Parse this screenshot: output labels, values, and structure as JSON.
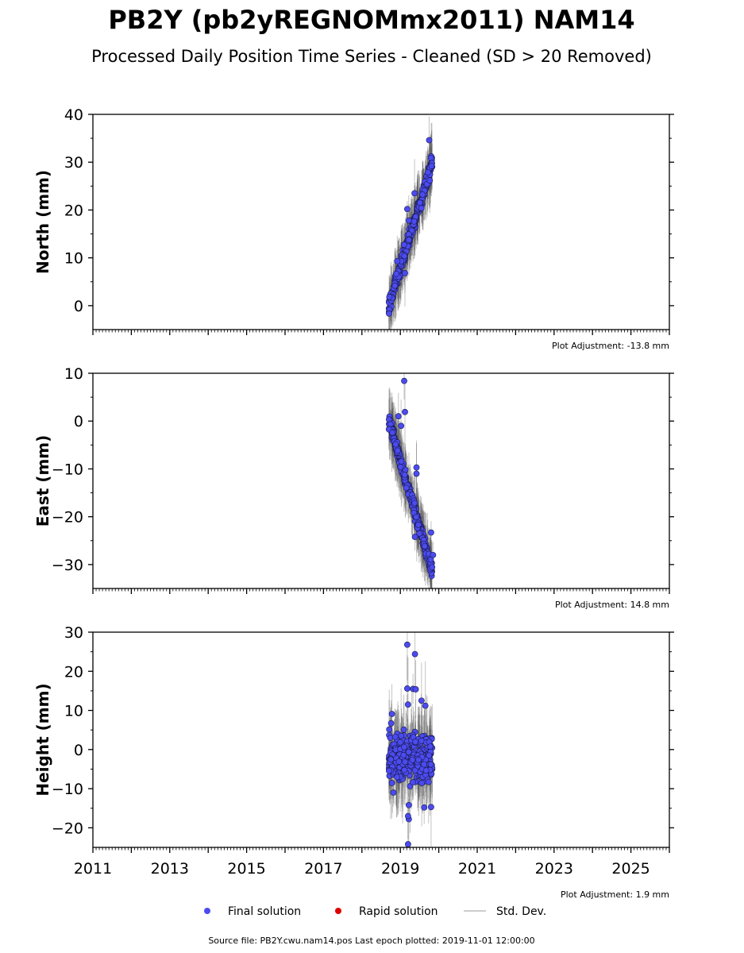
{
  "title": "PB2Y (pb2yREGNOMmx2011) NAM14",
  "subtitle": "Processed Daily Position Time Series - Cleaned (SD > 20 Removed)",
  "legend": {
    "placement": "bottom-center",
    "final_label": "Final solution",
    "rapid_label": "Rapid solution",
    "std_label": "Std. Dev."
  },
  "footer": "Source file: PB2Y.cwu.nam14.pos  Last epoch plotted: 2019-11-01 12:00:00",
  "colors": {
    "final": "#4b4bf0",
    "final_edge": "#1a1a4a",
    "rapid": "#e00000",
    "stddev": "#555555"
  },
  "chart_data": [
    {
      "type": "scatter",
      "ylabel": "North (mm)",
      "adjustment": "Plot Adjustment: -13.8 mm",
      "xlim": [
        2011,
        2026
      ],
      "ylim": [
        -5,
        40
      ],
      "yticks": [
        0,
        10,
        20,
        30,
        40
      ],
      "xtick_labels": [],
      "trend": {
        "x0": 2018.7,
        "y0": 0.0,
        "x1": 2019.83,
        "y1": 30.0,
        "scatter": 1.2
      },
      "outliers": [
        [
          2019.75,
          34.6
        ],
        [
          2019.37,
          23.5
        ],
        [
          2019.18,
          20.2
        ],
        [
          2018.92,
          9.3
        ],
        [
          2019.12,
          6.8
        ],
        [
          2019.22,
          17.8
        ]
      ],
      "grid": false
    },
    {
      "type": "scatter",
      "ylabel": "East (mm)",
      "adjustment": "Plot Adjustment: 14.8 mm",
      "xlim": [
        2011,
        2026
      ],
      "ylim": [
        -35,
        10
      ],
      "yticks": [
        -30,
        -20,
        -10,
        0,
        10
      ],
      "xtick_labels": [],
      "trend": {
        "x0": 2018.7,
        "y0": 0.0,
        "x1": 2019.83,
        "y1": -31.5,
        "scatter": 1.2
      },
      "outliers": [
        [
          2019.1,
          8.4
        ],
        [
          2019.12,
          1.9
        ],
        [
          2018.95,
          1.0
        ],
        [
          2019.02,
          -1.0
        ],
        [
          2019.42,
          -9.7
        ],
        [
          2019.42,
          -11.0
        ],
        [
          2019.8,
          -23.3
        ],
        [
          2019.38,
          -24.2
        ],
        [
          2019.85,
          -28.0
        ]
      ],
      "grid": false
    },
    {
      "type": "scatter",
      "ylabel": "Height (mm)",
      "adjustment": "Plot Adjustment: 1.9 mm",
      "xlim": [
        2011,
        2026
      ],
      "ylim": [
        -25,
        30
      ],
      "yticks": [
        -20,
        -10,
        0,
        10,
        20,
        30
      ],
      "xtick_labels": [
        "2011",
        "2013",
        "2015",
        "2017",
        "2019",
        "2021",
        "2023",
        "2025"
      ],
      "trend": {
        "x0": 2018.7,
        "y0": -2.0,
        "x1": 2019.83,
        "y1": -2.0,
        "scatter": 4.5
      },
      "outliers": [
        [
          2019.18,
          26.8
        ],
        [
          2019.38,
          24.4
        ],
        [
          2018.78,
          9.1
        ],
        [
          2018.76,
          6.7
        ],
        [
          2019.18,
          15.6
        ],
        [
          2019.33,
          15.5
        ],
        [
          2019.4,
          15.4
        ],
        [
          2019.2,
          11.5
        ],
        [
          2019.55,
          12.5
        ],
        [
          2019.65,
          11.2
        ],
        [
          2019.2,
          -24.2
        ],
        [
          2019.22,
          -17.8
        ],
        [
          2019.2,
          -17.0
        ],
        [
          2018.82,
          -11.0
        ],
        [
          2019.22,
          -14.2
        ],
        [
          2019.62,
          -14.8
        ],
        [
          2019.8,
          -14.7
        ]
      ],
      "grid": false
    }
  ]
}
